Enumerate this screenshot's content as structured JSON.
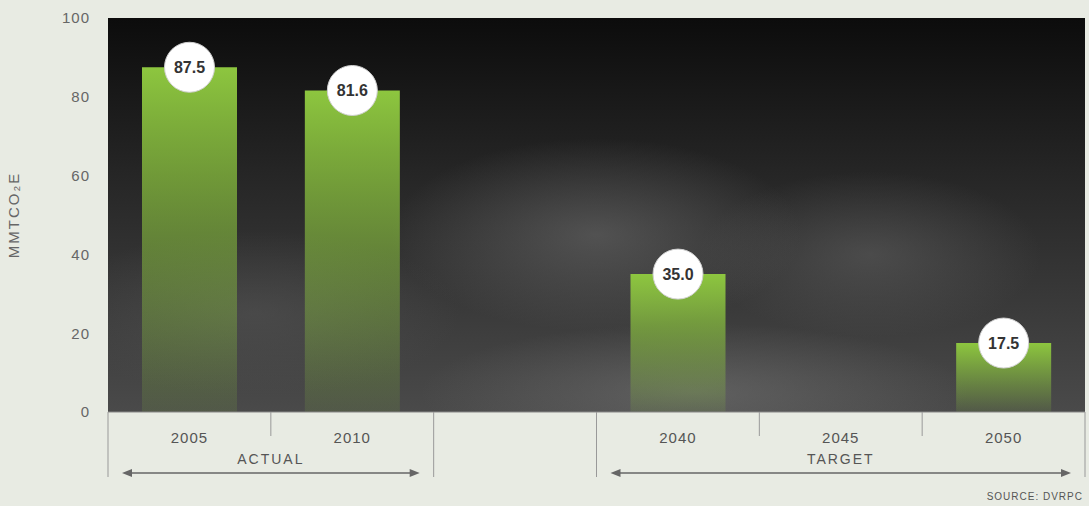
{
  "chart_data": {
    "type": "bar",
    "categories": [
      "2005",
      "2010",
      null,
      "2040",
      "2045",
      "2050"
    ],
    "values": [
      87.5,
      81.6,
      null,
      35.0,
      null,
      17.5
    ],
    "value_labels": [
      "87.5",
      "81.6",
      null,
      "35.0",
      null,
      "17.5"
    ],
    "data_labels": true,
    "color": "#8dc63f",
    "ylim": [
      0,
      100
    ],
    "yticks": [
      0,
      20,
      40,
      60,
      80,
      100
    ],
    "y_label": "MMTCO₂E",
    "grid": false,
    "annotations": [
      {
        "text": "ACTUAL",
        "from": "2005",
        "to": "2010"
      },
      {
        "text": "TARGET",
        "from": "2040",
        "to": "2050"
      }
    ],
    "source": "SOURCE: DVRPC"
  }
}
